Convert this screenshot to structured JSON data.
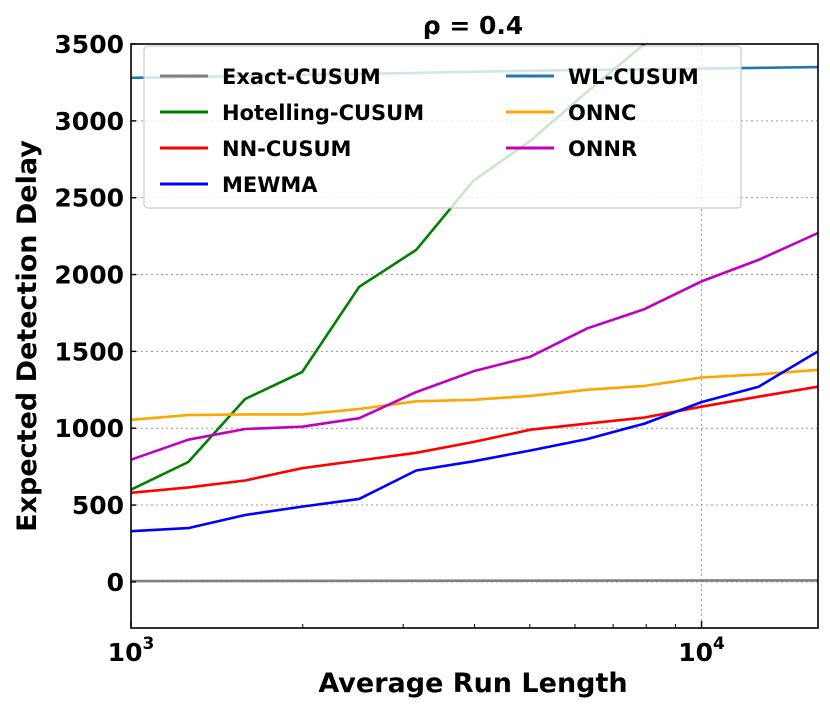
{
  "chart_data": {
    "type": "line",
    "title": "ρ = 0.4",
    "xlabel": "Average Run Length",
    "ylabel": "Expected Detection Delay",
    "xscale": "log",
    "xlim": [
      1000,
      16000
    ],
    "ylim": [
      -300,
      3500
    ],
    "grid": true,
    "legend_placement": "top",
    "y_ticks": [
      0,
      500,
      1000,
      1500,
      2000,
      2500,
      3000,
      3500
    ],
    "y_tick_labels": [
      "0",
      "500",
      "1000",
      "1500",
      "2000",
      "2500",
      "3000",
      "3500"
    ],
    "x_ticks": [
      1000,
      10000
    ],
    "x_tick_labels": [
      "10",
      "10"
    ],
    "x_tick_exponents": [
      "3",
      "4"
    ],
    "series": [
      {
        "name": "Exact-CUSUM",
        "color": "#808080",
        "x": [
          1000,
          16000
        ],
        "y": [
          5,
          10
        ]
      },
      {
        "name": "WL-CUSUM",
        "color": "#1f77b4",
        "x": [
          1000,
          1300,
          2000,
          3000,
          4000,
          6000,
          10000,
          16000
        ],
        "y": [
          3280,
          3285,
          3300,
          3310,
          3320,
          3330,
          3340,
          3350
        ]
      },
      {
        "name": "Hotelling-CUSUM",
        "color": "#008000",
        "x": [
          1000,
          1260,
          1585,
          1995,
          2512,
          3162,
          3981,
          5012,
          6310,
          7943
        ],
        "y": [
          600,
          780,
          1190,
          1365,
          1920,
          2160,
          2610,
          2870,
          3190,
          3500
        ]
      },
      {
        "name": "ONNC",
        "color": "#ffa500",
        "x": [
          1000,
          1260,
          1585,
          1995,
          2512,
          3162,
          3981,
          5012,
          6310,
          7943,
          10000,
          12589,
          16000
        ],
        "y": [
          1055,
          1085,
          1090,
          1090,
          1125,
          1175,
          1185,
          1210,
          1250,
          1275,
          1330,
          1350,
          1380
        ]
      },
      {
        "name": "NN-CUSUM",
        "color": "#ff0000",
        "x": [
          1000,
          1260,
          1585,
          1995,
          2512,
          3162,
          3981,
          5012,
          6310,
          7943,
          10000,
          12589,
          16000
        ],
        "y": [
          580,
          615,
          660,
          740,
          790,
          840,
          910,
          990,
          1030,
          1070,
          1140,
          1205,
          1270
        ]
      },
      {
        "name": "ONNR",
        "color": "#bf00bf",
        "x": [
          1000,
          1260,
          1585,
          1995,
          2512,
          3162,
          3981,
          5012,
          6310,
          7943,
          10000,
          12589,
          16000
        ],
        "y": [
          795,
          925,
          995,
          1010,
          1065,
          1235,
          1370,
          1465,
          1650,
          1775,
          1955,
          2095,
          2270
        ]
      },
      {
        "name": "MEWMA",
        "color": "#0000ff",
        "x": [
          1000,
          1260,
          1585,
          1995,
          2512,
          3162,
          3981,
          5012,
          6310,
          7943,
          10000,
          12589,
          16000
        ],
        "y": [
          330,
          350,
          435,
          490,
          540,
          725,
          785,
          855,
          930,
          1030,
          1170,
          1270,
          1500
        ]
      }
    ],
    "legend": [
      {
        "label": "Exact-CUSUM",
        "color": "#808080"
      },
      {
        "label": "WL-CUSUM",
        "color": "#1f77b4"
      },
      {
        "label": "Hotelling-CUSUM",
        "color": "#008000"
      },
      {
        "label": "ONNC",
        "color": "#ffa500"
      },
      {
        "label": "NN-CUSUM",
        "color": "#ff0000"
      },
      {
        "label": "ONNR",
        "color": "#bf00bf"
      },
      {
        "label": "MEWMA",
        "color": "#0000ff"
      }
    ]
  }
}
